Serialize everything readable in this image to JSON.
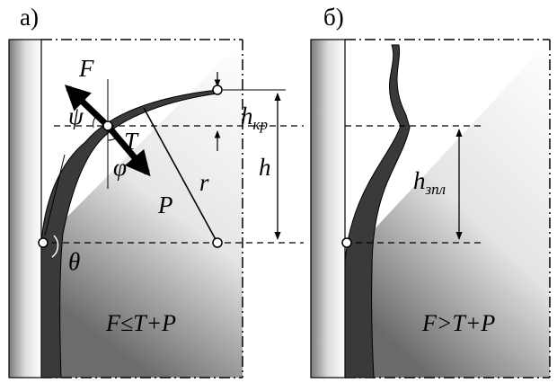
{
  "panel_a": {
    "label": "а)",
    "forces": {
      "F": "F",
      "T": "T",
      "P": "P"
    },
    "angles": {
      "psi": "ψ",
      "phi": "φ",
      "theta": "θ"
    },
    "r": "r",
    "h": "h",
    "h_kr": {
      "base": "h",
      "sub": "кр"
    },
    "condition": "F≤T+P"
  },
  "panel_b": {
    "label": "б)",
    "h_zpl": {
      "base": "h",
      "sub": "зпл"
    },
    "condition": "F>T+P"
  },
  "colors": {
    "ink": "#000000",
    "film": "#3a3a3a",
    "wall": "#b0b0b0"
  }
}
